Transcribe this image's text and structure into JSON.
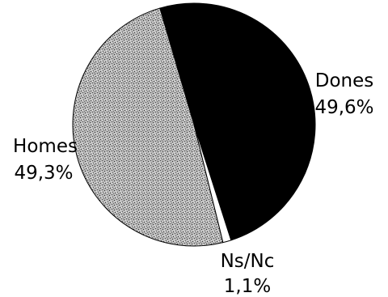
{
  "chart_data": {
    "type": "pie",
    "title": "",
    "slices": [
      {
        "label": "Dones",
        "value": 49.6,
        "value_label": "49,6%",
        "color": "#000000",
        "fill": "solid"
      },
      {
        "label": "Ns/Nc",
        "value": 1.1,
        "value_label": "1,1%",
        "color": "#ffffff",
        "fill": "solid"
      },
      {
        "label": "Homes",
        "value": 49.3,
        "value_label": "49,3%",
        "color": "#9a9a9a",
        "fill": "speckled"
      }
    ]
  }
}
